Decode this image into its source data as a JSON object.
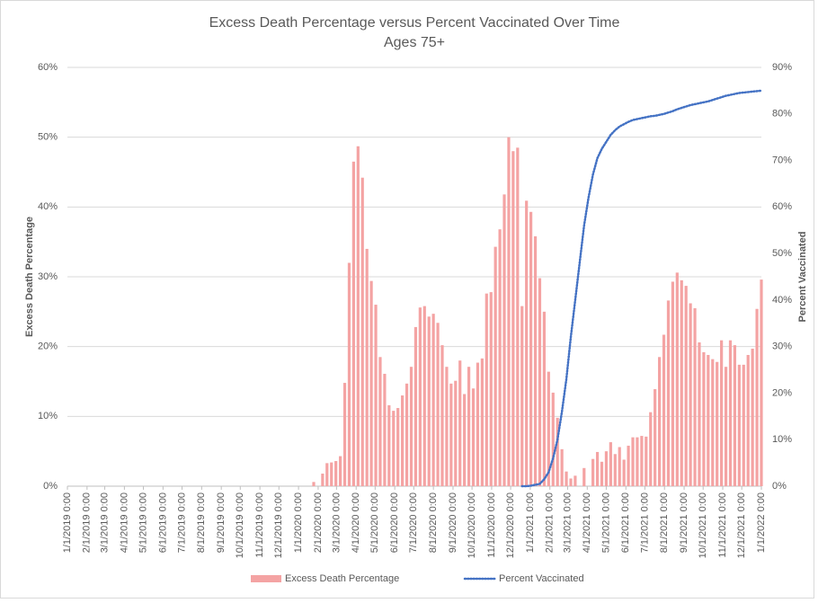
{
  "chart_data": {
    "type": "combo",
    "title": "Excess Death Percentage versus Percent Vaccinated Over Time",
    "subtitle": "Ages 75+",
    "y_label": "Excess Death Percentage",
    "y2_label": "Percent Vaccinated",
    "xlim": [
      "1/1/2019 0:00",
      "1/1/2022 0:00"
    ],
    "xticks": [
      "1/1/2019 0:00",
      "2/1/2019 0:00",
      "3/1/2019 0:00",
      "4/1/2019 0:00",
      "5/1/2019 0:00",
      "6/1/2019 0:00",
      "7/1/2019 0:00",
      "8/1/2019 0:00",
      "9/1/2019 0:00",
      "10/1/2019 0:00",
      "11/1/2019 0:00",
      "12/1/2019 0:00",
      "1/1/2020 0:00",
      "2/1/2020 0:00",
      "3/1/2020 0:00",
      "4/1/2020 0:00",
      "5/1/2020 0:00",
      "6/1/2020 0:00",
      "7/1/2020 0:00",
      "8/1/2020 0:00",
      "9/1/2020 0:00",
      "10/1/2020 0:00",
      "11/1/2020 0:00",
      "12/1/2020 0:00",
      "1/1/2021 0:00",
      "2/1/2021 0:00",
      "3/1/2021 0:00",
      "4/1/2021 0:00",
      "5/1/2021 0:00",
      "6/1/2021 0:00",
      "7/1/2021 0:00",
      "8/1/2021 0:00",
      "9/1/2021 0:00",
      "10/1/2021 0:00",
      "11/1/2021 0:00",
      "12/1/2021 0:00",
      "1/1/2022 0:00"
    ],
    "ylim": [
      0,
      60
    ],
    "yticks": [
      {
        "value": 0,
        "label": "0%"
      },
      {
        "value": 10,
        "label": "10%"
      },
      {
        "value": 20,
        "label": "20%"
      },
      {
        "value": 30,
        "label": "30%"
      },
      {
        "value": 40,
        "label": "40%"
      },
      {
        "value": 50,
        "label": "50%"
      },
      {
        "value": 60,
        "label": "60%"
      }
    ],
    "y2lim": [
      0,
      90
    ],
    "y2ticks": [
      {
        "value": 0,
        "label": "0%"
      },
      {
        "value": 10,
        "label": "10%"
      },
      {
        "value": 20,
        "label": "20%"
      },
      {
        "value": 30,
        "label": "30%"
      },
      {
        "value": 40,
        "label": "40%"
      },
      {
        "value": 50,
        "label": "50%"
      },
      {
        "value": 60,
        "label": "60%"
      },
      {
        "value": 70,
        "label": "70%"
      },
      {
        "value": 80,
        "label": "80%"
      },
      {
        "value": 90,
        "label": "90%"
      }
    ],
    "grid": true,
    "legend": "bottom",
    "x": [
      "1/4/2020",
      "1/11/2020",
      "1/18/2020",
      "1/25/2020",
      "2/1/2020",
      "2/8/2020",
      "2/15/2020",
      "2/22/2020",
      "2/29/2020",
      "3/7/2020",
      "3/14/2020",
      "3/21/2020",
      "3/28/2020",
      "4/4/2020",
      "4/11/2020",
      "4/18/2020",
      "4/25/2020",
      "5/2/2020",
      "5/9/2020",
      "5/16/2020",
      "5/23/2020",
      "5/30/2020",
      "6/6/2020",
      "6/13/2020",
      "6/20/2020",
      "6/27/2020",
      "7/4/2020",
      "7/11/2020",
      "7/18/2020",
      "7/25/2020",
      "8/1/2020",
      "8/8/2020",
      "8/15/2020",
      "8/22/2020",
      "8/29/2020",
      "9/5/2020",
      "9/12/2020",
      "9/19/2020",
      "9/26/2020",
      "10/3/2020",
      "10/10/2020",
      "10/17/2020",
      "10/24/2020",
      "10/31/2020",
      "11/7/2020",
      "11/14/2020",
      "11/21/2020",
      "11/28/2020",
      "12/5/2020",
      "12/12/2020",
      "12/19/2020",
      "12/26/2020",
      "1/2/2021",
      "1/9/2021",
      "1/16/2021",
      "1/23/2021",
      "1/30/2021",
      "2/6/2021",
      "2/13/2021",
      "2/20/2021",
      "2/27/2021",
      "3/6/2021",
      "3/13/2021",
      "3/20/2021",
      "3/27/2021",
      "4/3/2021",
      "4/10/2021",
      "4/17/2021",
      "4/24/2021",
      "5/1/2021",
      "5/8/2021",
      "5/15/2021",
      "5/22/2021",
      "5/29/2021",
      "6/5/2021",
      "6/12/2021",
      "6/19/2021",
      "6/26/2021",
      "7/3/2021",
      "7/10/2021",
      "7/17/2021",
      "7/24/2021",
      "7/31/2021",
      "8/7/2021",
      "8/14/2021",
      "8/21/2021",
      "8/28/2021",
      "9/4/2021",
      "9/11/2021",
      "9/18/2021",
      "9/25/2021",
      "10/2/2021",
      "10/9/2021",
      "10/16/2021",
      "10/23/2021",
      "10/30/2021",
      "11/6/2021",
      "11/13/2021",
      "11/20/2021",
      "11/27/2021",
      "12/4/2021",
      "12/11/2021",
      "12/18/2021",
      "12/25/2021",
      "1/1/2022"
    ],
    "series": [
      {
        "name": "Excess Death Percentage",
        "type": "bar",
        "color": "#f4a3a3",
        "values": [
          0,
          0,
          0,
          0.6,
          0,
          1.8,
          3.3,
          3.4,
          3.6,
          4.3,
          14.8,
          32,
          46.5,
          48.7,
          44.2,
          34,
          29.4,
          26,
          18.5,
          16.1,
          11.6,
          10.8,
          11.2,
          13,
          14.7,
          17.1,
          22.8,
          25.6,
          25.8,
          24.3,
          24.7,
          23.4,
          20.2,
          17.1,
          14.7,
          15.1,
          18,
          13.2,
          17.1,
          14,
          17.7,
          18.3,
          27.6,
          27.8,
          34.3,
          36.8,
          41.8,
          50,
          48,
          48.5,
          25.8,
          40.9,
          39.3,
          35.8,
          29.8,
          25,
          16.4,
          13.4,
          9.8,
          5.3,
          2.1,
          1.1,
          1.5,
          0,
          2.6,
          0,
          3.9,
          4.9,
          3.5,
          5,
          6.3,
          4.6,
          5.6,
          3.8,
          5.8,
          7,
          7,
          7.2,
          7.1,
          10.6,
          13.9,
          18.5,
          21.7,
          26.6,
          29.3,
          30.6,
          29.5,
          28.7,
          26.2,
          25.5,
          20.6,
          19.2,
          18.8,
          18.2,
          17.8,
          20.9,
          17.1,
          20.9,
          20.2,
          17.4,
          17.4,
          18.8,
          19.7,
          25.4,
          29.6
        ]
      },
      {
        "name": "Percent Vaccinated",
        "type": "line",
        "axis": "y2",
        "color": "#4472c4",
        "values": [
          null,
          null,
          null,
          null,
          null,
          null,
          null,
          null,
          null,
          null,
          null,
          null,
          null,
          null,
          null,
          null,
          null,
          null,
          null,
          null,
          null,
          null,
          null,
          null,
          null,
          null,
          null,
          null,
          null,
          null,
          null,
          null,
          null,
          null,
          null,
          null,
          null,
          null,
          null,
          null,
          null,
          null,
          null,
          null,
          null,
          null,
          null,
          null,
          null,
          null,
          0,
          0,
          0.1,
          0.3,
          0.5,
          1.5,
          3,
          6,
          10,
          16,
          23,
          32,
          40,
          48,
          56,
          62,
          67,
          70.5,
          72.5,
          74,
          75.5,
          76.5,
          77.3,
          77.8,
          78.3,
          78.7,
          78.9,
          79.1,
          79.3,
          79.5,
          79.6,
          79.8,
          80,
          80.3,
          80.6,
          81,
          81.3,
          81.6,
          81.9,
          82.1,
          82.3,
          82.5,
          82.7,
          83,
          83.3,
          83.6,
          83.9,
          84.1,
          84.3,
          84.5,
          84.6,
          84.7,
          84.8,
          84.9,
          85
        ]
      }
    ]
  }
}
